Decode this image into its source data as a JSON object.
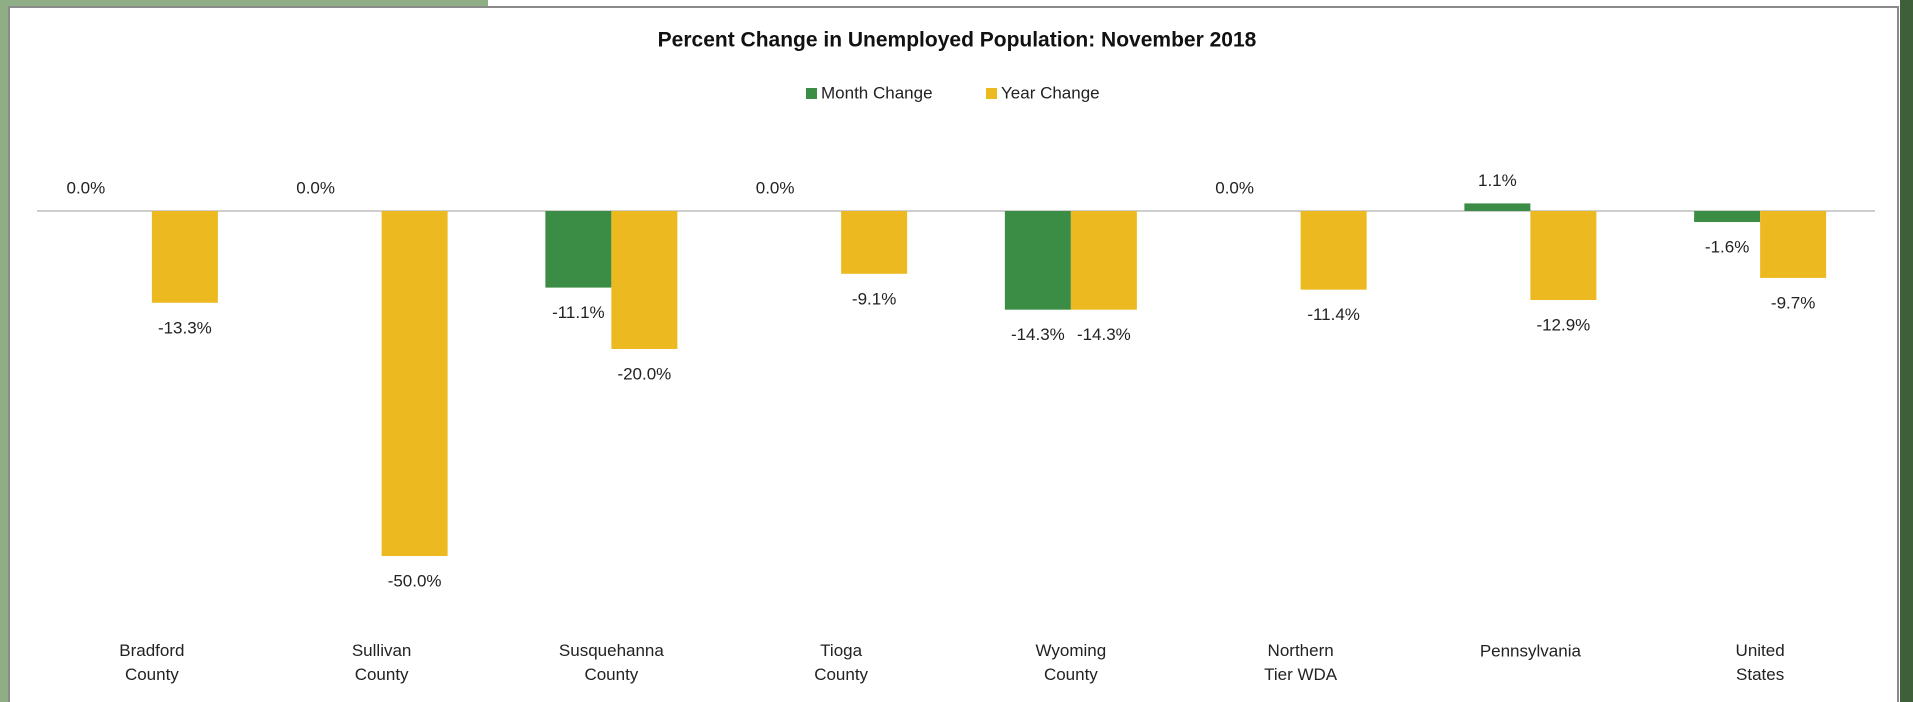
{
  "chart_data": {
    "type": "bar",
    "title": "Percent Change in Unemployed Population: November 2018",
    "categories": [
      "Bradford County",
      "Sullivan County",
      "Susquehanna County",
      "Tioga County",
      "Wyoming County",
      "Northern Tier WDA",
      "Pennsylvania",
      "United States"
    ],
    "series": [
      {
        "name": "Month Change",
        "color": "#3b8c44",
        "values": [
          0,
          0,
          -11.1,
          0,
          -14.3,
          0,
          1.1,
          -1.6
        ],
        "value_labels": [
          "0.0%",
          "0.0%",
          "-11.1%",
          "0.0%",
          "-14.3%",
          "0.0%",
          "1.1%",
          "-1.6%"
        ]
      },
      {
        "name": "Year Change",
        "color": "#ecb920",
        "values": [
          -13.3,
          -50,
          -20,
          -9.1,
          -14.3,
          -11.4,
          -12.9,
          -9.7
        ],
        "value_labels": [
          "-13.3%",
          "-50.0%",
          "-20.0%",
          "-9.1%",
          "-14.3%",
          "-11.4%",
          "-12.9%",
          "-9.7%"
        ]
      }
    ]
  }
}
